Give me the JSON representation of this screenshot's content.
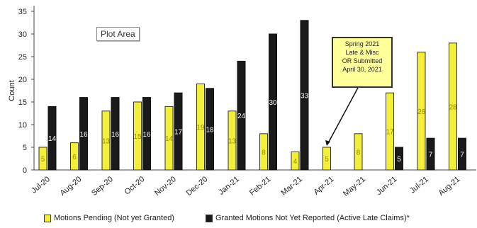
{
  "chart_data": {
    "type": "bar",
    "title": "",
    "xlabel": "",
    "ylabel": "Count",
    "ylim": [
      0,
      35
    ],
    "yticks": [
      0,
      5,
      10,
      15,
      20,
      25,
      30,
      35
    ],
    "grid": false,
    "legend_position": "bottom",
    "categories": [
      "Jul-20",
      "Aug-20",
      "Sep-20",
      "Oct-20",
      "Nov-20",
      "Dec-20",
      "Jan-21",
      "Feb-21",
      "Mar-21",
      "Apr-21",
      "May-21",
      "Jun-21",
      "Jul-21",
      "Aug-21"
    ],
    "series": [
      {
        "name": "Motions Pending  (Not yet Granted)",
        "color": "#f2ee3a",
        "values": [
          5,
          6,
          13,
          15,
          14,
          19,
          13,
          8,
          4,
          5,
          8,
          17,
          26,
          28
        ]
      },
      {
        "name": "Granted Motions Not Yet Reported (Active Late Claims)*",
        "color": "#1a1a1a",
        "values": [
          14,
          16,
          16,
          16,
          17,
          18,
          24,
          30,
          33,
          0,
          0,
          5,
          7,
          7
        ]
      }
    ],
    "annotations": [
      {
        "text": "Plot Area"
      },
      {
        "lines": [
          "Spring 2021",
          "Late & Misc",
          "OR Submitted",
          "April 30, 2021"
        ],
        "points_to": "Apr-21"
      }
    ]
  }
}
